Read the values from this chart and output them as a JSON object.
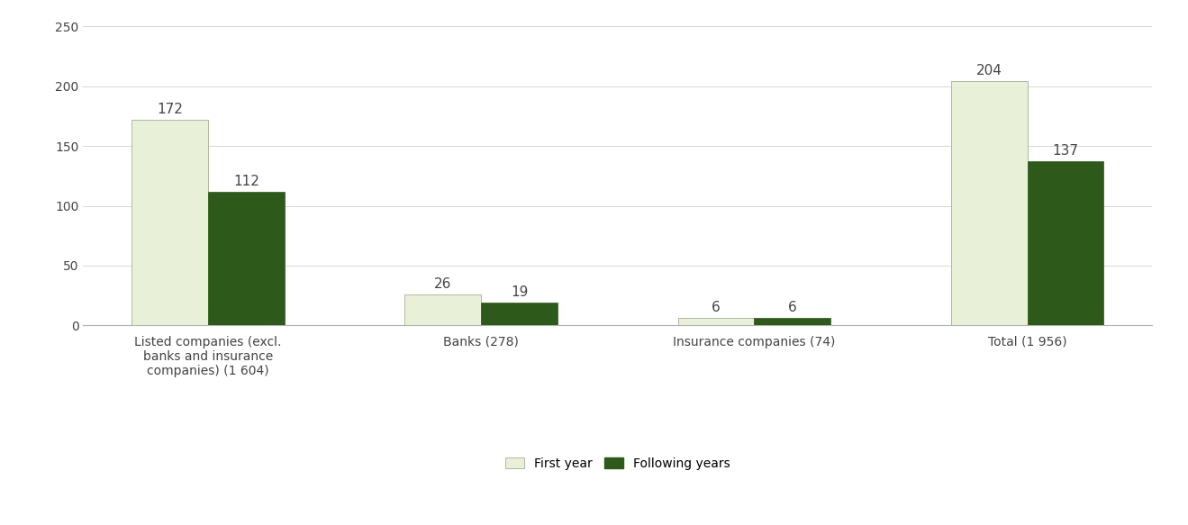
{
  "categories": [
    "Listed companies (excl.\nbanks and insurance\ncompanies) (1 604)",
    "Banks (278)",
    "Insurance companies (74)",
    "Total (1 956)"
  ],
  "first_year_values": [
    172,
    26,
    6,
    204
  ],
  "following_years_values": [
    112,
    19,
    6,
    137
  ],
  "first_year_color": "#e8f0d8",
  "following_years_color": "#2d5a1b",
  "bar_width": 0.28,
  "ylim": [
    0,
    250
  ],
  "yticks": [
    0,
    50,
    100,
    150,
    200,
    250
  ],
  "legend_labels": [
    "First year",
    "Following years"
  ],
  "value_label_fontsize": 11,
  "tick_label_fontsize": 10,
  "background_color": "#ffffff",
  "grid_color": "#d0d0d0",
  "spine_color": "#b0b0b0"
}
